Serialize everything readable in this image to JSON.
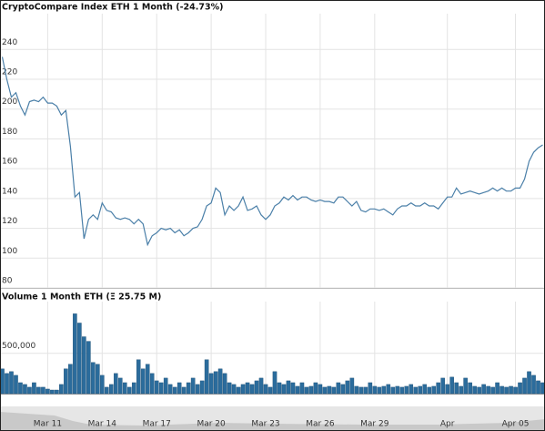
{
  "chart_data": [
    {
      "type": "line",
      "title": "CryptoCompare Index ETH 1 Month (-24.73%)",
      "color": "#4a7fa8",
      "grid": true,
      "ylim": [
        80,
        264
      ],
      "yticks": [
        80,
        100,
        120,
        140,
        160,
        180,
        200,
        220,
        240
      ],
      "values": [
        235,
        220,
        208,
        211,
        202,
        196,
        205,
        206,
        205,
        208,
        204,
        204,
        202,
        196,
        199,
        175,
        141,
        144,
        113,
        126,
        129,
        126,
        137,
        132,
        131,
        127,
        126,
        127,
        126,
        123,
        126,
        123,
        109,
        115,
        117,
        120,
        119,
        120,
        117,
        119,
        115,
        117,
        120,
        121,
        126,
        135,
        137,
        147,
        144,
        129,
        135,
        132,
        135,
        141,
        132,
        133,
        135,
        129,
        126,
        129,
        135,
        137,
        141,
        139,
        142,
        139,
        141,
        141,
        139,
        138,
        139,
        138,
        138,
        137,
        141,
        141,
        138,
        135,
        138,
        132,
        131,
        133,
        133,
        132,
        133,
        131,
        129,
        133,
        135,
        135,
        137,
        135,
        135,
        137,
        135,
        135,
        133,
        137,
        141,
        141,
        147,
        143,
        144,
        145,
        144,
        143,
        144,
        145,
        147,
        145,
        147,
        145,
        145,
        147,
        147,
        153,
        165,
        171,
        174,
        176
      ]
    },
    {
      "type": "bar",
      "title": "Volume 1 Month ETH (Ξ 25.75 M)",
      "color": "#2b6c9c",
      "grid": true,
      "ylim": [
        0,
        1140000
      ],
      "yticks": [
        {
          "value": 500000,
          "label": "500,000"
        }
      ],
      "categories": [
        null,
        null,
        null,
        null,
        null,
        null,
        null,
        null,
        null,
        null,
        "Mar 11",
        null,
        null,
        null,
        null,
        null,
        null,
        null,
        null,
        null,
        null,
        null,
        "Mar 14",
        null,
        null,
        null,
        null,
        null,
        null,
        null,
        null,
        null,
        null,
        null,
        "Mar 17",
        null,
        null,
        null,
        null,
        null,
        null,
        null,
        null,
        null,
        null,
        null,
        "Mar 20",
        null,
        null,
        null,
        null,
        null,
        null,
        null,
        null,
        null,
        null,
        null,
        "Mar 23",
        null,
        null,
        null,
        null,
        null,
        null,
        null,
        null,
        null,
        null,
        null,
        "Mar 26",
        null,
        null,
        null,
        null,
        null,
        null,
        null,
        null,
        null,
        null,
        null,
        "Mar 29",
        null,
        null,
        null,
        null,
        null,
        null,
        null,
        null,
        null,
        null,
        null,
        null,
        null,
        null,
        null,
        "Apr",
        null,
        null,
        null,
        null,
        null,
        null,
        null,
        null,
        null,
        null,
        null,
        null,
        null,
        null,
        "Apr 05",
        null,
        null,
        null,
        null,
        null,
        null
      ],
      "values": [
        307000,
        250000,
        273000,
        227000,
        136000,
        114000,
        80000,
        136000,
        80000,
        80000,
        57000,
        45000,
        45000,
        114000,
        307000,
        364000,
        989000,
        875000,
        705000,
        648000,
        386000,
        364000,
        227000,
        80000,
        114000,
        250000,
        193000,
        136000,
        80000,
        136000,
        420000,
        307000,
        364000,
        250000,
        159000,
        136000,
        193000,
        114000,
        80000,
        136000,
        80000,
        136000,
        193000,
        114000,
        159000,
        420000,
        250000,
        273000,
        307000,
        250000,
        136000,
        114000,
        80000,
        114000,
        136000,
        114000,
        159000,
        193000,
        114000,
        80000,
        273000,
        136000,
        114000,
        159000,
        136000,
        91000,
        136000,
        80000,
        91000,
        136000,
        114000,
        80000,
        91000,
        80000,
        136000,
        114000,
        159000,
        193000,
        91000,
        80000,
        80000,
        136000,
        91000,
        80000,
        91000,
        114000,
        80000,
        91000,
        80000,
        91000,
        114000,
        80000,
        91000,
        114000,
        80000,
        91000,
        136000,
        193000,
        114000,
        205000,
        136000,
        91000,
        193000,
        136000,
        91000,
        80000,
        114000,
        91000,
        80000,
        136000,
        91000,
        80000,
        91000,
        80000,
        136000,
        193000,
        273000,
        227000,
        159000,
        136000
      ]
    }
  ]
}
